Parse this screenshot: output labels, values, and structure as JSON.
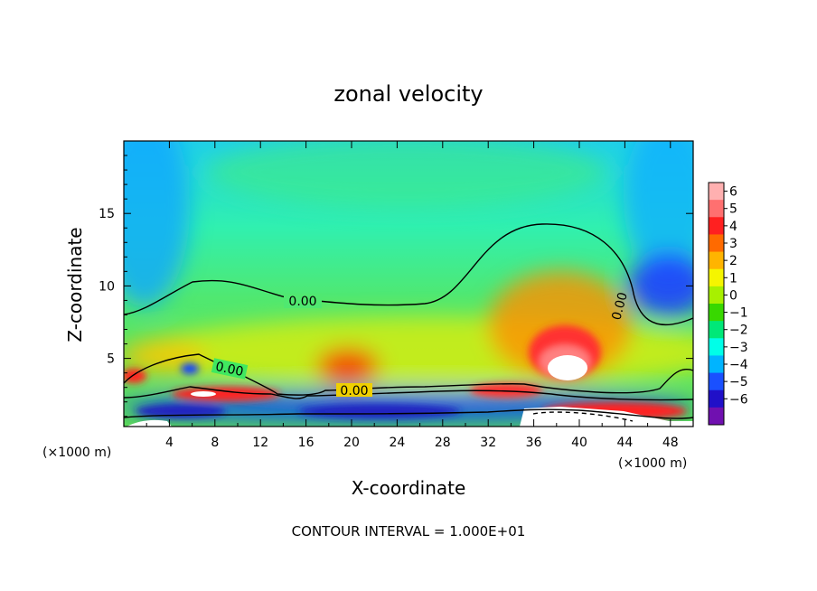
{
  "chart_data": {
    "type": "heatmap",
    "title": "zonal velocity",
    "xlabel": "X-coordinate",
    "ylabel": "Z-coordinate",
    "x_unit_left": "(×1000 m)",
    "x_unit_right": "(×1000 m)",
    "footer": "CONTOUR INTERVAL = 1.000E+01",
    "xlim": [
      0,
      50
    ],
    "ylim": [
      0.3,
      20
    ],
    "x_ticks": [
      "4",
      "8",
      "12",
      "16",
      "20",
      "24",
      "28",
      "32",
      "36",
      "40",
      "44",
      "48"
    ],
    "y_ticks": [
      "5",
      "10",
      "15"
    ],
    "colorbar": {
      "levels": [
        "6",
        "5",
        "4",
        "3",
        "2",
        "1",
        "0",
        "−1",
        "−2",
        "−3",
        "−4",
        "−5",
        "−6"
      ],
      "colors": [
        "#ffb0b0",
        "#ff7070",
        "#ff2020",
        "#ff6a00",
        "#ffb400",
        "#f5f500",
        "#a8f000",
        "#38d800",
        "#00e878",
        "#00ffe8",
        "#00b4ff",
        "#1a50ff",
        "#2010c8",
        "#7010b0"
      ]
    },
    "contour_labels": [
      "0.00",
      "0.00",
      "0.00",
      "0.00"
    ]
  }
}
